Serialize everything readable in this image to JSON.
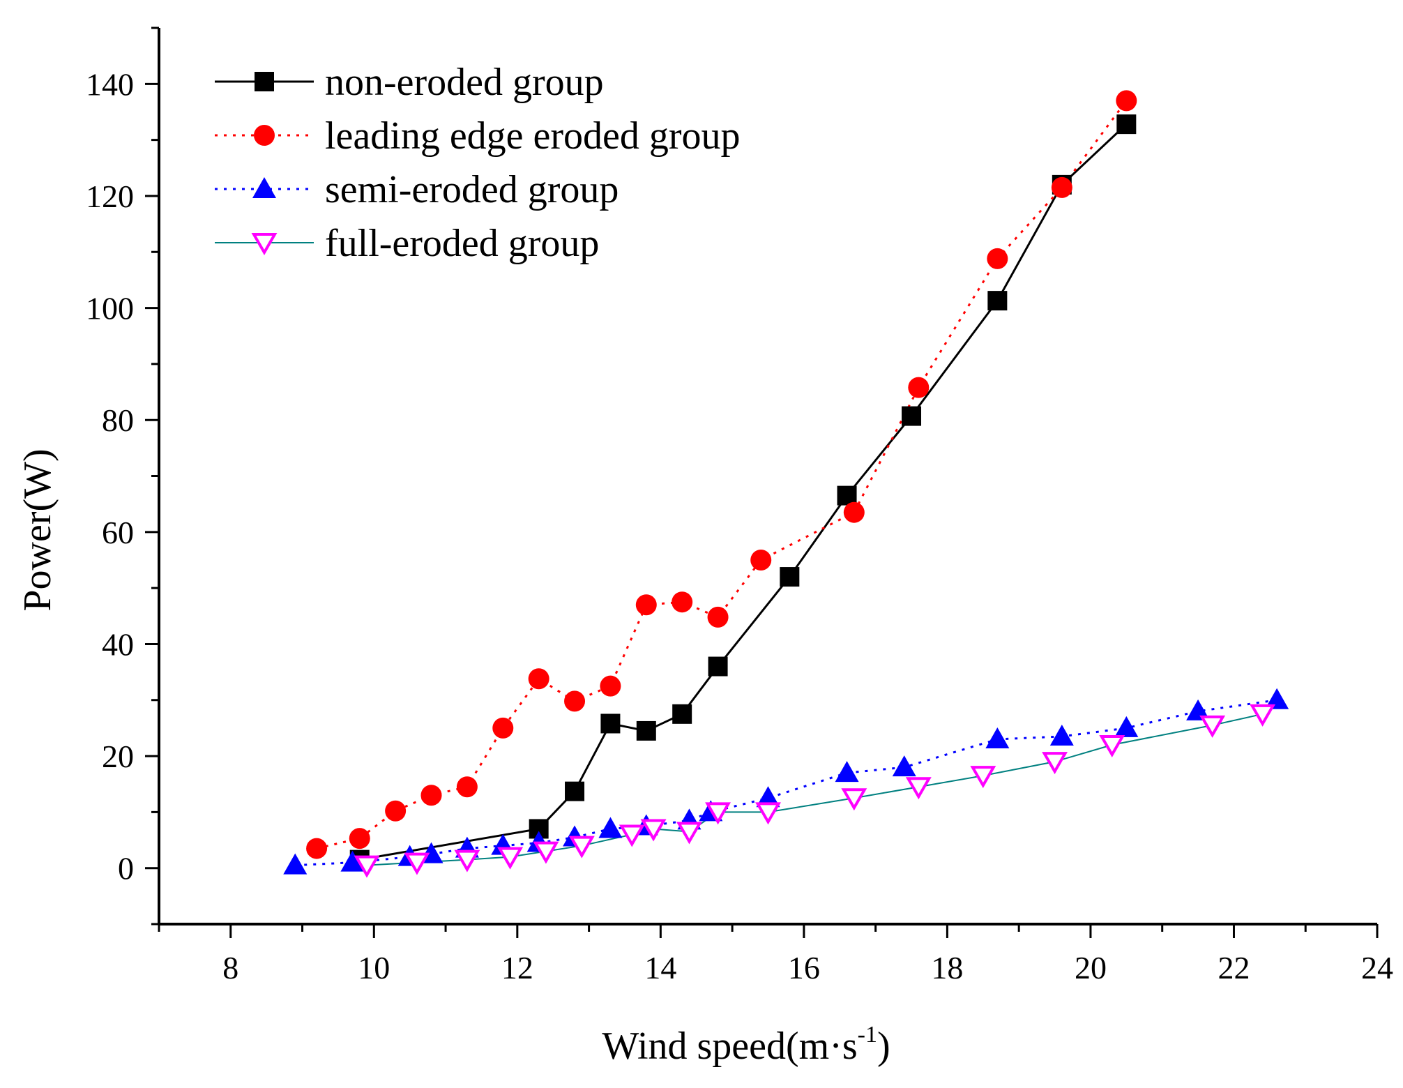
{
  "chart_data": {
    "type": "line",
    "title": "",
    "xlabel": "Wind speed(m·s",
    "xlabel_sup": "-1",
    "xlabel_end": ")",
    "ylabel": "Power(W)",
    "xlim": [
      7,
      24
    ],
    "ylim": [
      -10,
      150
    ],
    "xticks": [
      8,
      10,
      12,
      14,
      16,
      18,
      20,
      22,
      24
    ],
    "yticks": [
      0,
      20,
      40,
      60,
      80,
      100,
      120,
      140
    ],
    "xtick_labels": [
      "8",
      "10",
      "12",
      "14",
      "16",
      "18",
      "20",
      "22",
      "24"
    ],
    "ytick_labels": [
      "0",
      "20",
      "40",
      "60",
      "80",
      "100",
      "120",
      "140"
    ],
    "legend_position": "top-left",
    "grid": false,
    "series": [
      {
        "name": "non-eroded group",
        "color": "#000000",
        "marker": "square",
        "line": "solid",
        "x": [
          9.8,
          12.3,
          12.8,
          13.3,
          13.8,
          14.3,
          14.8,
          15.8,
          16.6,
          17.5,
          18.7,
          19.6,
          20.5
        ],
        "y": [
          1.5,
          7,
          13.7,
          25.8,
          24.5,
          27.5,
          36,
          52,
          66.5,
          80.7,
          101.3,
          122,
          132.8
        ]
      },
      {
        "name": "leading edge eroded group",
        "color": "#ff0000",
        "marker": "circle",
        "line": "dotted",
        "x": [
          9.2,
          9.8,
          10.3,
          10.8,
          11.3,
          11.8,
          12.3,
          12.8,
          13.3,
          13.8,
          14.3,
          14.8,
          15.4,
          16.7,
          17.6,
          18.7,
          19.6,
          20.5
        ],
        "y": [
          3.5,
          5.3,
          10.2,
          13,
          14.5,
          25,
          33.8,
          29.8,
          32.5,
          47,
          47.5,
          44.8,
          55,
          63.5,
          85.8,
          108.8,
          121.5,
          137
        ]
      },
      {
        "name": "semi-eroded group",
        "color": "#0000ff",
        "marker": "triangle-up",
        "line": "dotted",
        "x": [
          8.9,
          9.7,
          10.5,
          10.8,
          11.3,
          11.8,
          12.3,
          12.8,
          13.3,
          13.8,
          14.4,
          14.7,
          15.5,
          16.6,
          17.4,
          18.7,
          19.6,
          20.5,
          21.5,
          22.6
        ],
        "y": [
          0.5,
          1,
          2,
          2.5,
          3.5,
          4,
          4.5,
          5.5,
          7,
          7.5,
          8.5,
          10,
          12.5,
          17,
          18,
          23,
          23.5,
          25,
          28,
          30
        ]
      },
      {
        "name": "full-eroded group",
        "color": "#ff00ff",
        "line_color": "#008080",
        "marker": "triangle-down",
        "line": "solid",
        "x": [
          9.9,
          10.6,
          11.3,
          11.9,
          12.4,
          12.9,
          13.6,
          13.9,
          14.4,
          14.8,
          15.5,
          16.7,
          17.6,
          18.5,
          19.5,
          20.3,
          21.7,
          22.4
        ],
        "y": [
          0.5,
          1,
          1.5,
          2,
          3,
          4,
          6,
          7,
          6.5,
          10,
          10,
          12.5,
          14.5,
          16.5,
          19,
          22,
          25.5,
          27.5
        ]
      }
    ]
  }
}
